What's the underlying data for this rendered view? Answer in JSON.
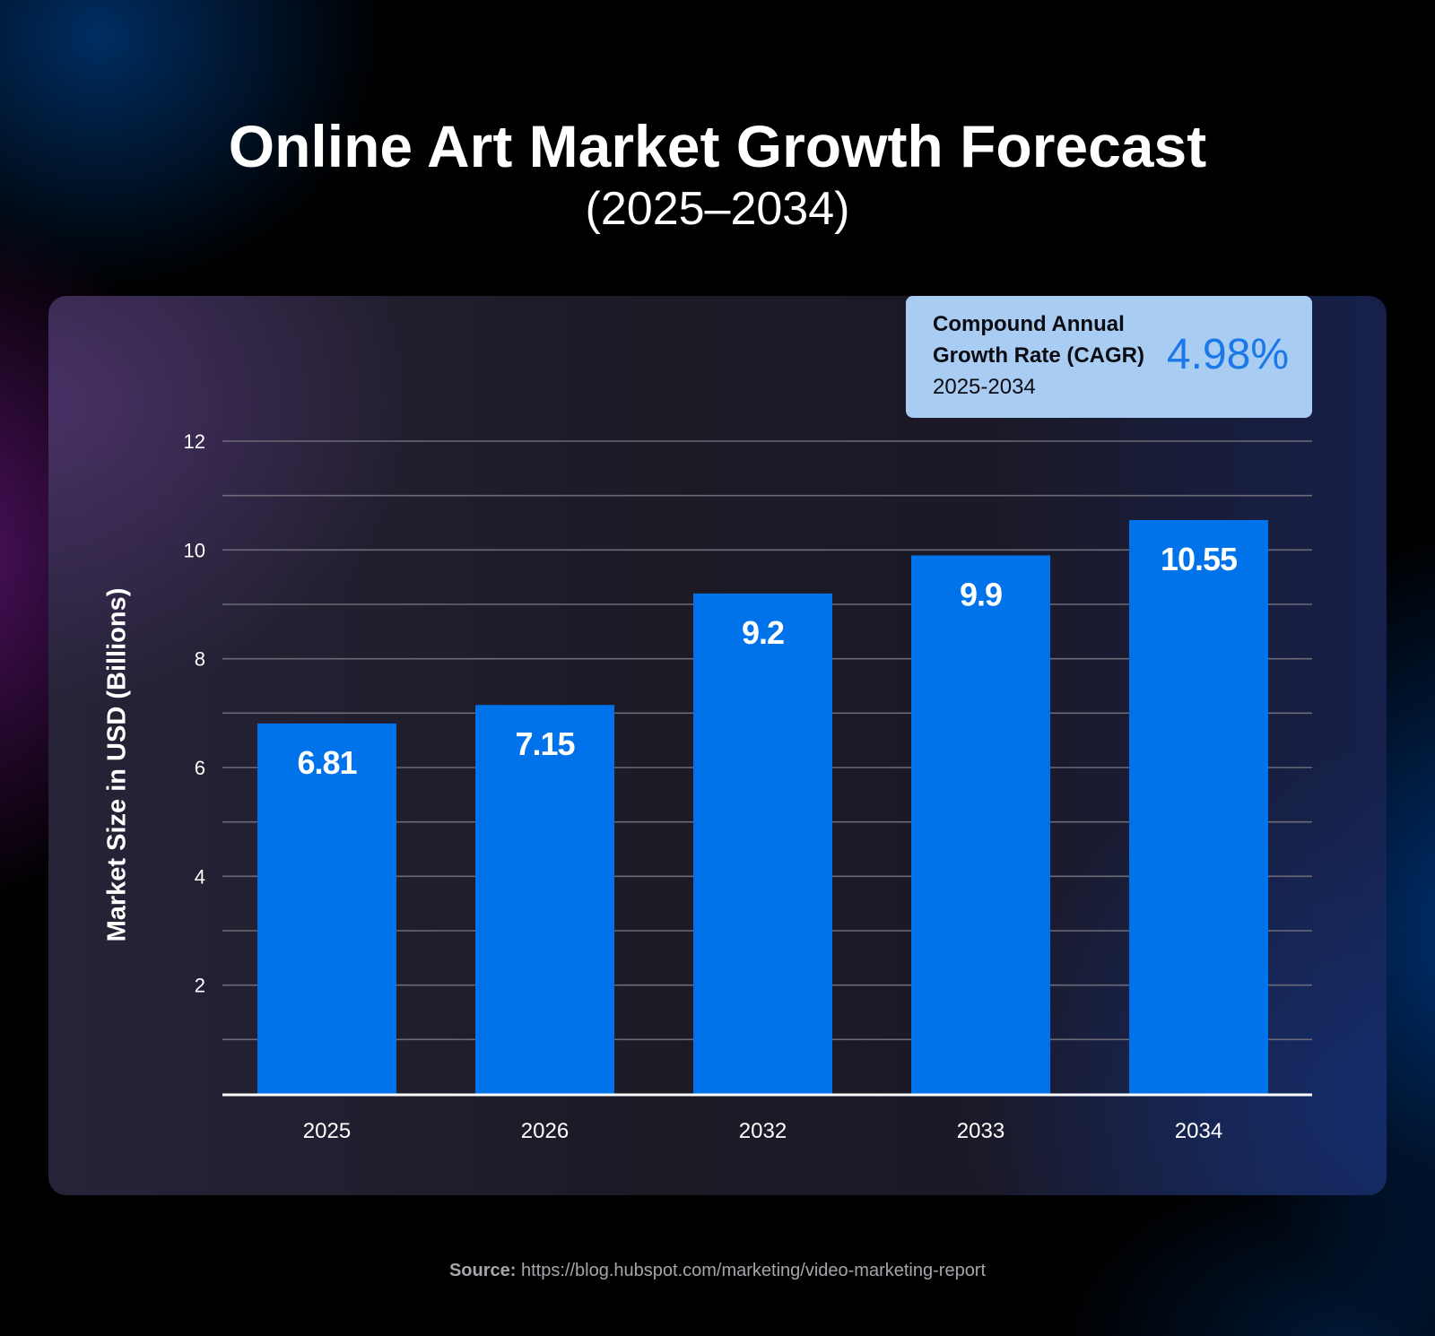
{
  "header": {
    "title": "Online Art Market Growth Forecast",
    "subtitle": "(2025–2034)"
  },
  "cagr_box": {
    "line1": "Compound Annual",
    "line2": "Growth Rate (CAGR)",
    "line3": "2025-2034",
    "value": "4.98%"
  },
  "footer": {
    "source_label": "Source:",
    "source_url": "https://blog.hubspot.com/marketing/video-marketing-report"
  },
  "colors": {
    "bar": "#0073ea",
    "cagr_box_bg": "#a8ccf2",
    "cagr_value": "#1a78e8",
    "gridline": "#6b6a78",
    "baseline": "#ffffff"
  },
  "chart_data": {
    "type": "bar",
    "title": "Online Art Market Growth Forecast (2025–2034)",
    "xlabel": "",
    "ylabel": "Market Size in USD (Billions)",
    "categories": [
      "2025",
      "2026",
      "2032",
      "2033",
      "2034"
    ],
    "values": [
      6.81,
      7.15,
      9.2,
      9.9,
      10.55
    ],
    "value_labels": [
      "6.81",
      "7.15",
      "9.2",
      "9.9",
      "10.55"
    ],
    "ylim": [
      0,
      12
    ],
    "yticks": [
      2,
      4,
      6,
      8,
      10,
      12
    ],
    "ytick_labels": [
      "2",
      "4",
      "6",
      "8",
      "10",
      "12"
    ],
    "gridlines_every": 1,
    "grid": true,
    "legend": "none",
    "annotation": "Compound Annual Growth Rate (CAGR) 2025-2034: 4.98%"
  }
}
